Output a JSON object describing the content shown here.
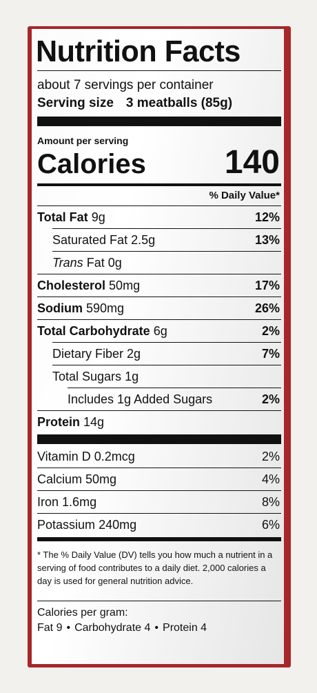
{
  "label": {
    "title": "Nutrition Facts",
    "servings_per_container": "about 7 servings per container",
    "serving_size_label": "Serving size",
    "serving_size_value": "3 meatballs (85g)",
    "amount_per_serving": "Amount per serving",
    "calories_label": "Calories",
    "calories_value": "140",
    "daily_value_header": "% Daily Value*",
    "nutrients": [
      {
        "name": "Total Fat",
        "amount": "9g",
        "dv": "12%"
      },
      {
        "name": "Saturated Fat",
        "amount": "2.5g",
        "dv": "13%"
      },
      {
        "name": "Trans",
        "name_rest": "Fat",
        "amount": "0g",
        "dv": ""
      },
      {
        "name": "Cholesterol",
        "amount": "50mg",
        "dv": "17%"
      },
      {
        "name": "Sodium",
        "amount": "590mg",
        "dv": "26%"
      },
      {
        "name": "Total Carbohydrate",
        "amount": "6g",
        "dv": "2%"
      },
      {
        "name": "Dietary Fiber",
        "amount": "2g",
        "dv": "7%"
      },
      {
        "name": "Total Sugars",
        "amount": "1g",
        "dv": ""
      },
      {
        "name": "Includes 1g Added Sugars",
        "amount": "",
        "dv": "2%"
      },
      {
        "name": "Protein",
        "amount": "14g",
        "dv": ""
      }
    ],
    "vitamins": [
      {
        "name": "Vitamin D",
        "amount": "0.2mcg",
        "dv": "2%"
      },
      {
        "name": "Calcium",
        "amount": "50mg",
        "dv": "4%"
      },
      {
        "name": "Iron",
        "amount": "1.6mg",
        "dv": "8%"
      },
      {
        "name": "Potassium",
        "amount": "240mg",
        "dv": "6%"
      }
    ],
    "footnote": "* The % Daily Value (DV) tells you how much a nutrient in a serving of food contributes to a daily diet. 2,000 calories a day is used for general nutrition advice.",
    "calories_per_gram_label": "Calories per gram:",
    "calories_per_gram": [
      {
        "name": "Fat",
        "value": "9"
      },
      {
        "name": "Carbohydrate",
        "value": "4"
      },
      {
        "name": "Protein",
        "value": "4"
      }
    ],
    "bullet": "•"
  }
}
